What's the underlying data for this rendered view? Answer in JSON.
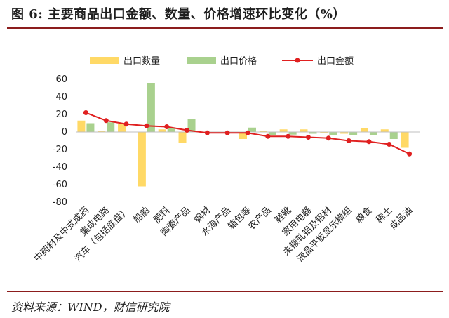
{
  "figure": {
    "title": "图 6: 主要商品出口金额、数量、价格增速环比变化（%）",
    "source": "资料来源：WIND，财信研究院"
  },
  "colors": {
    "quantity": "#FFD966",
    "price": "#A9D18E",
    "value": "#E02020",
    "rule": "#8C1D1D",
    "axis_text": "#1F1F1F"
  },
  "chart_data": {
    "type": "bar",
    "categories": [
      "中药材及中式成药",
      "集成电路",
      "汽车（包括底盘）",
      "船舶",
      "肥料",
      "陶瓷产品",
      "钢材",
      "水海产品",
      "箱包等",
      "农产品",
      "鞋靴",
      "家用电器",
      "未锻轧铝及铝材",
      "液晶平板显示模组",
      "粮食",
      "稀土",
      "成品油"
    ],
    "series": [
      {
        "name": "出口数量",
        "type": "bar",
        "values": [
          13,
          1,
          9,
          -62,
          3,
          -12,
          0,
          0,
          -8,
          1,
          3,
          3,
          -1,
          -2,
          4,
          3,
          -18
        ]
      },
      {
        "name": "出口价格",
        "type": "bar",
        "values": [
          10,
          11,
          0,
          56,
          5,
          15,
          0,
          0,
          5,
          -4,
          -3,
          -2,
          -4,
          -4,
          -4,
          -8,
          0
        ]
      },
      {
        "name": "出口金额",
        "type": "line",
        "values": [
          22,
          13,
          9,
          7,
          6,
          2,
          -1,
          -1,
          -1,
          -5,
          -5,
          -6,
          -7,
          -10,
          -11,
          -14,
          -25
        ]
      }
    ],
    "yticks": [
      60,
      40,
      20,
      0,
      -20,
      -40,
      -60,
      -80
    ],
    "ylim": [
      -80,
      60
    ],
    "legend_position": "top",
    "grid": false
  }
}
